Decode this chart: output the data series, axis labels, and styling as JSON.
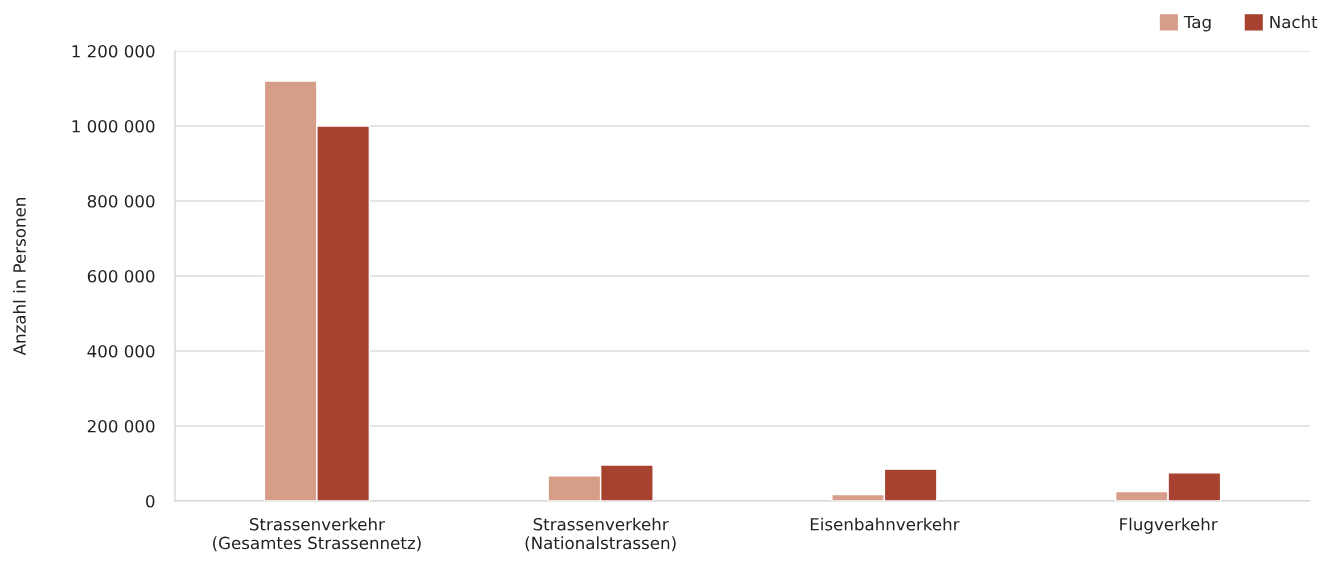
{
  "chart_data": {
    "type": "bar",
    "ylabel": "Anzahl in Personen",
    "categories": [
      "Strassenverkehr\n(Gesamtes Strassennetz)",
      "Strassenverkehr\n(Nationalstrassen)",
      "Eisenbahnverkehr",
      "Flugverkehr"
    ],
    "series": [
      {
        "name": "Tag",
        "color": "#d69e89",
        "values": [
          1120000,
          67000,
          17000,
          25000
        ]
      },
      {
        "name": "Nacht",
        "color": "#a84230",
        "values": [
          1000000,
          96000,
          85000,
          75000
        ]
      }
    ],
    "ylim": [
      0,
      1200000
    ],
    "yticks": [
      {
        "value": 0,
        "label": "0"
      },
      {
        "value": 200000,
        "label": "200 000"
      },
      {
        "value": 400000,
        "label": "400 000"
      },
      {
        "value": 600000,
        "label": "600 000"
      },
      {
        "value": 800000,
        "label": "800 000"
      },
      {
        "value": 1000000,
        "label": "1 000 000"
      },
      {
        "value": 1200000,
        "label": "1 200 000"
      }
    ],
    "grid": "y",
    "legend": "top right"
  }
}
